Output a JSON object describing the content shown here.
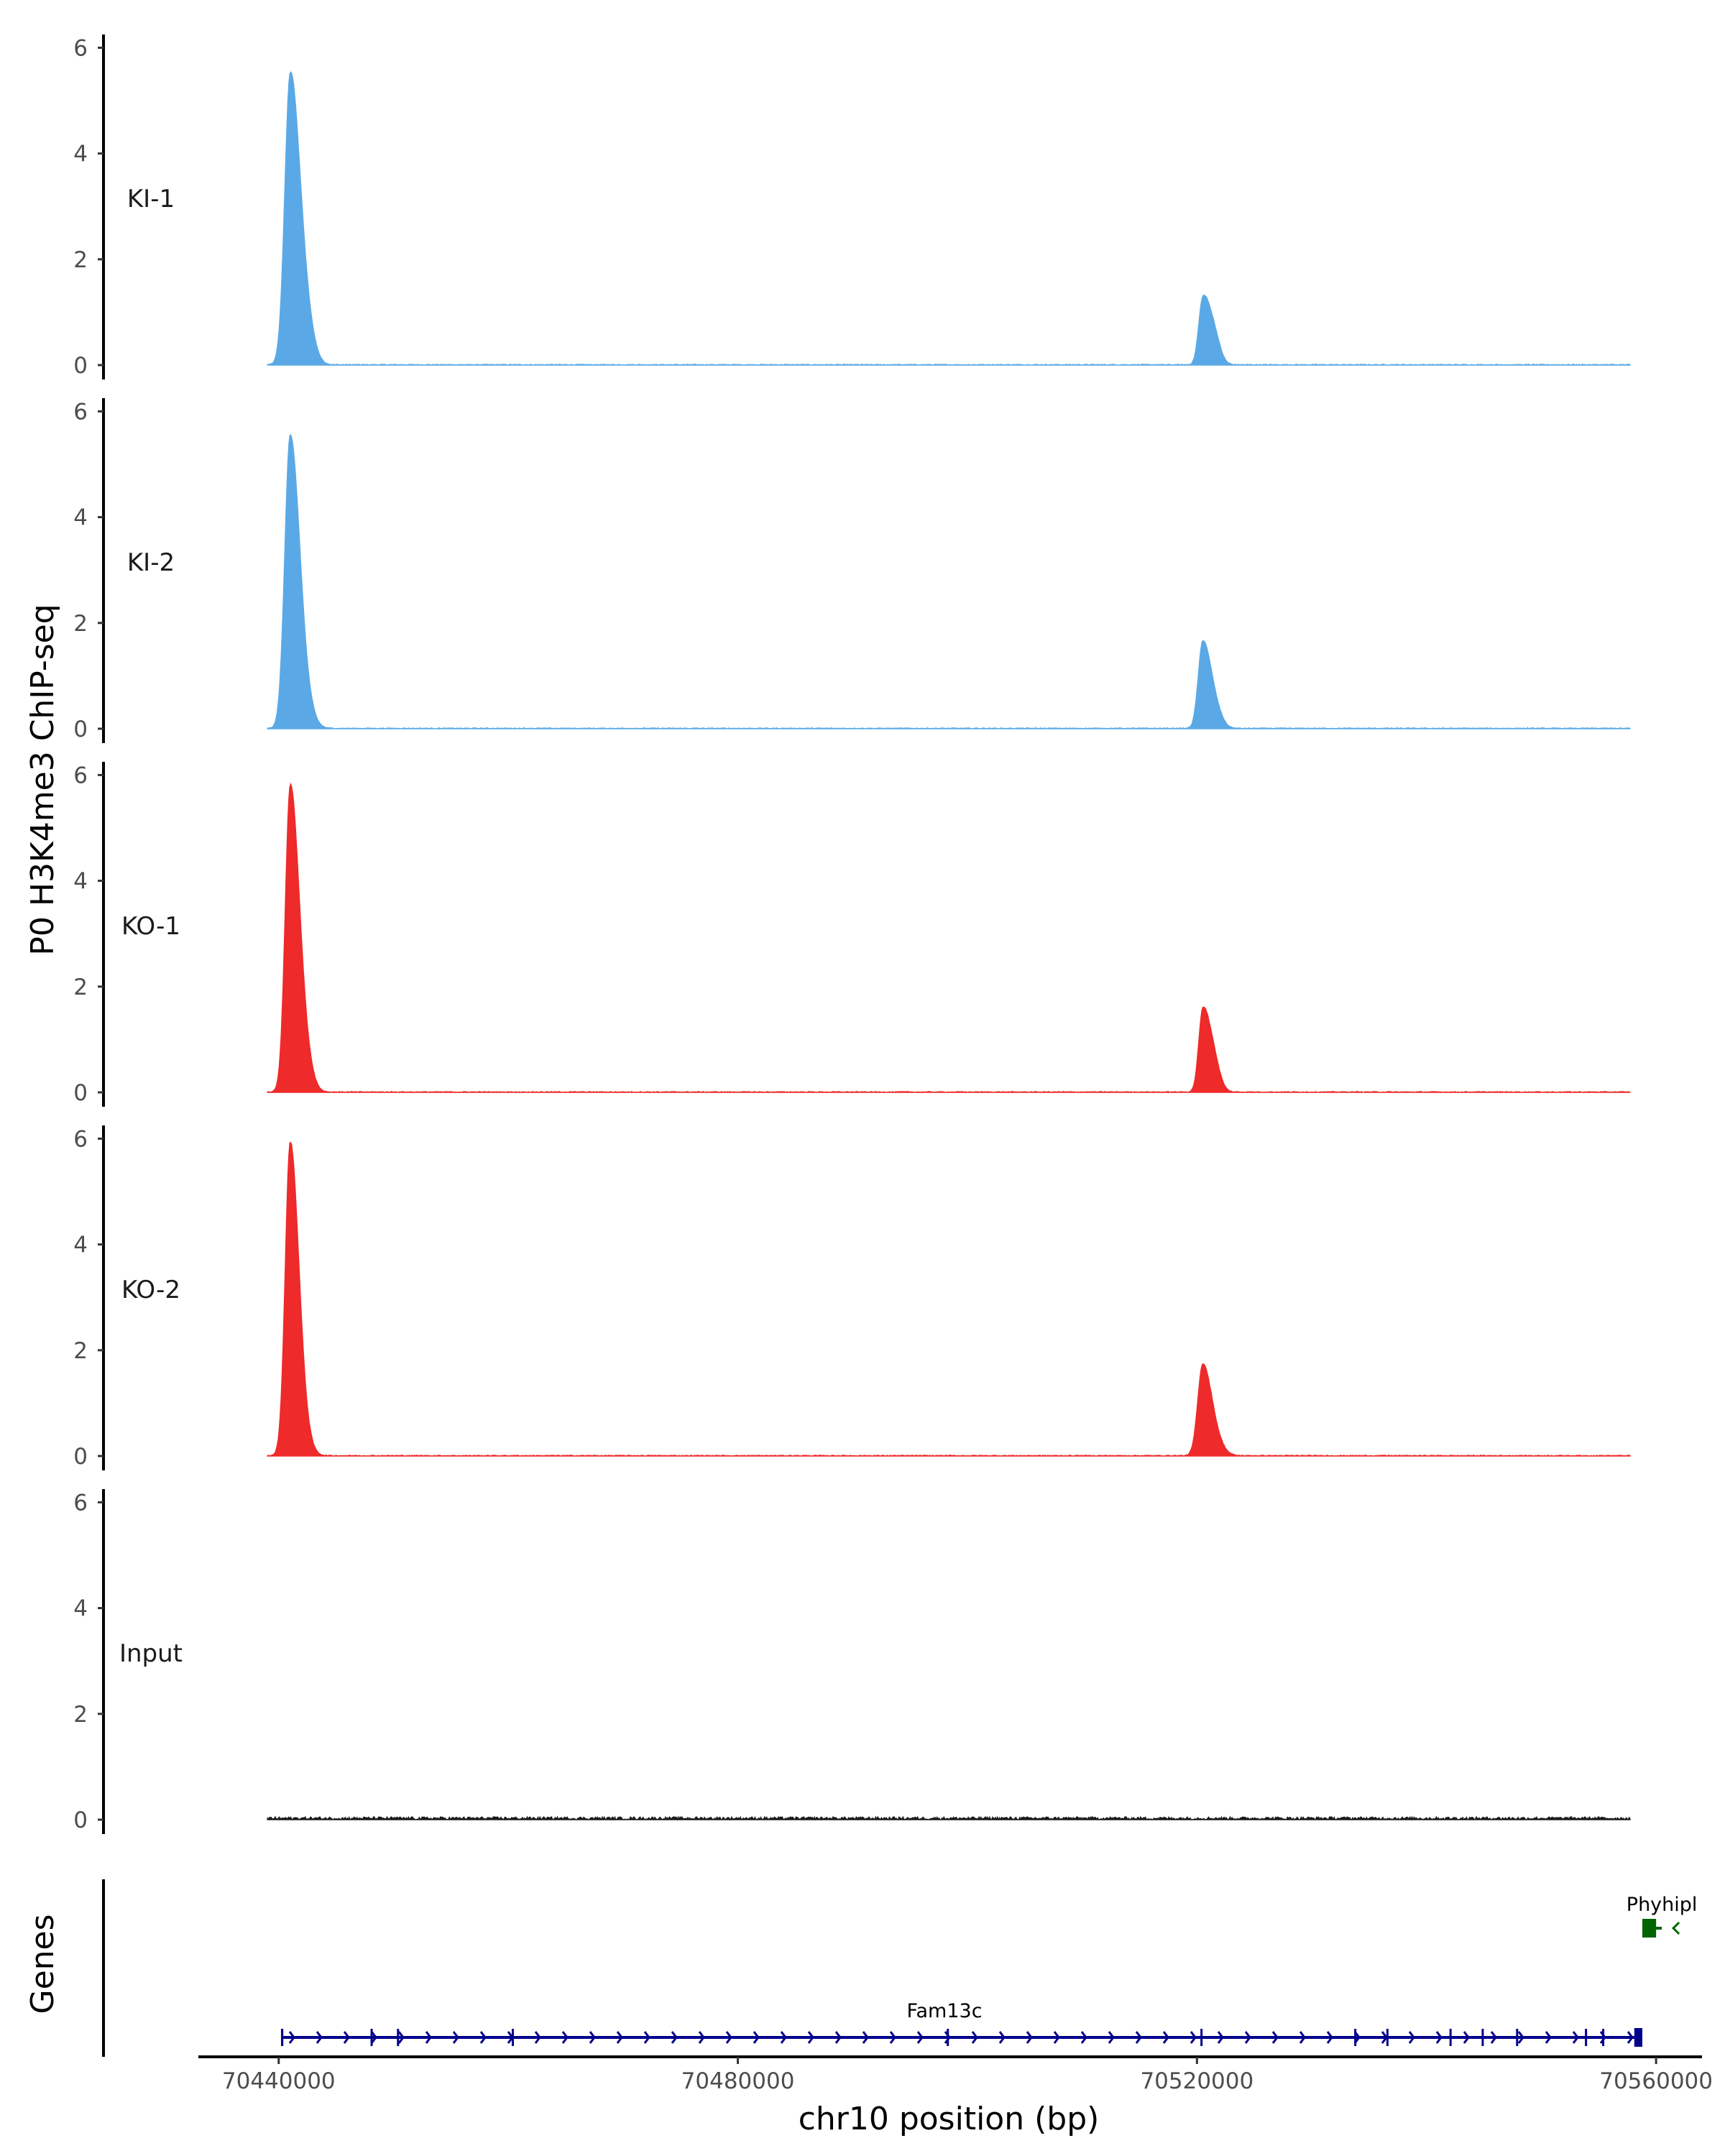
{
  "chart_data": {
    "type": "area",
    "title": "",
    "ylabel": "P0 H3K4me3 ChIP-seq",
    "xlabel": "chr10 position (bp)",
    "genes_label": "Genes",
    "xlim": [
      70433000,
      70564000
    ],
    "ylim": [
      0,
      6.2
    ],
    "x_ticks": [
      70440000,
      70480000,
      70520000,
      70560000
    ],
    "x_tick_labels": [
      "70440000",
      "70480000",
      "70520000",
      "70560000"
    ],
    "y_ticks": [
      0,
      2,
      4,
      6
    ],
    "y_tick_labels": [
      "0",
      "2",
      "4",
      "6"
    ],
    "colors": {
      "KI": "#5aa9e6",
      "KO": "#ee2a2a",
      "Input": "#1a1a1a",
      "gene_minus": "#006400",
      "gene_plus": "#00008b"
    },
    "tracks": [
      {
        "name": "KI-1",
        "color": "#5aa9e6",
        "peaks": [
          {
            "center": 70441000,
            "height": 5.4,
            "width_bp": 600,
            "shoulder": 0.7
          },
          {
            "center": 70520500,
            "height": 1.2,
            "width_bp": 450,
            "shoulder": 0.5
          }
        ]
      },
      {
        "name": "KI-2",
        "color": "#5aa9e6",
        "peaks": [
          {
            "center": 70441000,
            "height": 5.5,
            "width_bp": 600,
            "shoulder": 0.3
          },
          {
            "center": 70520500,
            "height": 1.6,
            "width_bp": 500,
            "shoulder": 0.3
          }
        ]
      },
      {
        "name": "KO-1",
        "color": "#ee2a2a",
        "peaks": [
          {
            "center": 70441000,
            "height": 5.7,
            "width_bp": 550,
            "shoulder": 0.6
          },
          {
            "center": 70520500,
            "height": 1.5,
            "width_bp": 450,
            "shoulder": 0.5
          }
        ]
      },
      {
        "name": "KO-2",
        "color": "#ee2a2a",
        "peaks": [
          {
            "center": 70441000,
            "height": 5.9,
            "width_bp": 550,
            "shoulder": 0.2
          },
          {
            "center": 70520500,
            "height": 1.7,
            "width_bp": 550,
            "shoulder": 0.2
          }
        ]
      },
      {
        "name": "Input",
        "color": "#1a1a1a",
        "peaks": []
      }
    ],
    "genes": [
      {
        "name": "Phyhipl",
        "strand": "-",
        "start": 70558800,
        "end": 70560500,
        "color": "#006400",
        "exons": [
          [
            70558800,
            70560000
          ]
        ]
      },
      {
        "name": "Fam13c",
        "strand": "+",
        "start": 70440200,
        "end": 70558800,
        "color": "#00008b",
        "exons": [
          [
            70440200,
            70440400
          ],
          [
            70448000,
            70448100
          ],
          [
            70450300,
            70450400
          ],
          [
            70460300,
            70460400
          ],
          [
            70498200,
            70498300
          ],
          [
            70520300,
            70520450
          ],
          [
            70533700,
            70533800
          ],
          [
            70536500,
            70536600
          ],
          [
            70542000,
            70542100
          ],
          [
            70544800,
            70544900
          ],
          [
            70547800,
            70547900
          ],
          [
            70553800,
            70553900
          ],
          [
            70555300,
            70555400
          ],
          [
            70558100,
            70558800
          ]
        ]
      }
    ]
  }
}
